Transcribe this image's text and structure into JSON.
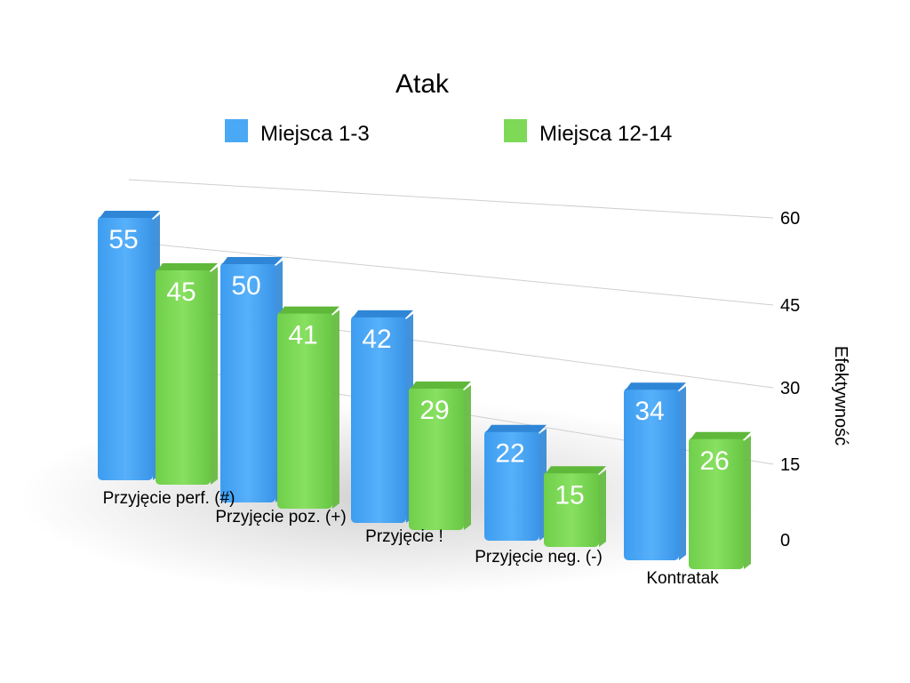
{
  "chart_data": {
    "type": "bar",
    "title": "Atak",
    "ylabel": "Efektywność",
    "xlabel": "",
    "ylim": [
      0,
      60
    ],
    "yticks": [
      0,
      15,
      30,
      45,
      60
    ],
    "grid": true,
    "legend_position": "top",
    "categories": [
      "Przyjęcie perf. (#)",
      "Przyjęcie poz. (+)",
      "Przyjęcie !",
      "Przyjęcie neg. (-)",
      "Kontratak"
    ],
    "series": [
      {
        "name": "Miejsca 1-3",
        "values": [
          55,
          50,
          42,
          22,
          34
        ],
        "color": "#4aa8f5"
      },
      {
        "name": "Miejsca 12-14",
        "values": [
          45,
          41,
          29,
          15,
          26
        ],
        "color": "#7ed957"
      }
    ]
  }
}
